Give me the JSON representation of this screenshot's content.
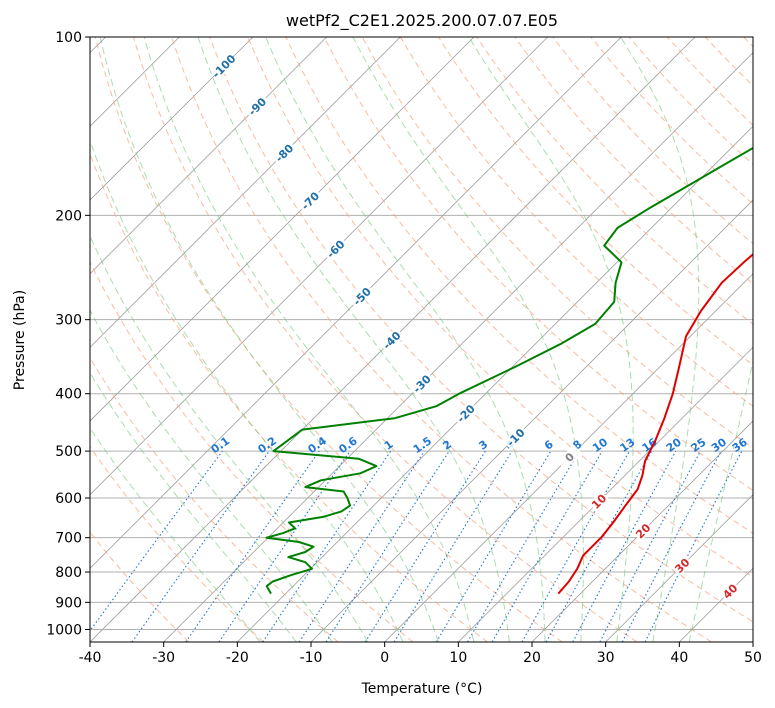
{
  "chart_data": {
    "type": "line",
    "title": "wetPf2_C2E1.2025.200.07.07.E05",
    "xlabel": "Temperature (°C)",
    "ylabel": "Pressure (hPa)",
    "xlim": [
      -40,
      50
    ],
    "ylim": [
      1050,
      100
    ],
    "y_scale": "log",
    "x_ticks": [
      -40,
      -30,
      -20,
      -10,
      0,
      10,
      20,
      30,
      40,
      50
    ],
    "y_ticks": [
      1000,
      900,
      800,
      700,
      600,
      500,
      400,
      300,
      200,
      100
    ],
    "grid": true,
    "skew": "isotherms slanted to upper right",
    "colors": {
      "temperature": "#e00000",
      "dewpoint": "#008000",
      "isotherm": "#9e9e9e",
      "dry_adiabat": "#f4a582",
      "moist_adiabat": "#74c476",
      "mixing_ratio": "#1f77d4",
      "isotherm_label": "#1f6fa8",
      "dry_label": "#d62728"
    },
    "series": [
      {
        "name": "",
        "color": "#e00000",
        "points": [
          {
            "p": 870,
            "t": 17.0
          },
          {
            "p": 830,
            "t": 16.8
          },
          {
            "p": 790,
            "t": 16.2
          },
          {
            "p": 750,
            "t": 15.2
          },
          {
            "p": 700,
            "t": 15.2
          },
          {
            "p": 660,
            "t": 14.8
          },
          {
            "p": 620,
            "t": 14.2
          },
          {
            "p": 580,
            "t": 13.6
          },
          {
            "p": 550,
            "t": 12.4
          },
          {
            "p": 520,
            "t": 10.8
          },
          {
            "p": 480,
            "t": 9.4
          },
          {
            "p": 440,
            "t": 7.6
          },
          {
            "p": 400,
            "t": 5.4
          },
          {
            "p": 360,
            "t": 2.6
          },
          {
            "p": 320,
            "t": -0.6
          },
          {
            "p": 290,
            "t": -2.0
          },
          {
            "p": 260,
            "t": -3.0
          },
          {
            "p": 240,
            "t": -2.8
          },
          {
            "p": 215,
            "t": -2.2
          },
          {
            "p": 200,
            "t": -1.2
          },
          {
            "p": 185,
            "t": 2.2
          },
          {
            "p": 170,
            "t": 6.0
          },
          {
            "p": 155,
            "t": 9.2
          },
          {
            "p": 140,
            "t": 11.2
          },
          {
            "p": 125,
            "t": 12.6
          },
          {
            "p": 115,
            "t": 14.2
          },
          {
            "p": 100,
            "t": 19.6
          }
        ]
      },
      {
        "name": "",
        "color": "#008000",
        "points": [
          {
            "p": 870,
            "t": -22.0
          },
          {
            "p": 845,
            "t": -23.6
          },
          {
            "p": 830,
            "t": -23.4
          },
          {
            "p": 810,
            "t": -21.8
          },
          {
            "p": 790,
            "t": -19.8
          },
          {
            "p": 770,
            "t": -21.6
          },
          {
            "p": 755,
            "t": -24.6
          },
          {
            "p": 740,
            "t": -23.0
          },
          {
            "p": 725,
            "t": -22.6
          },
          {
            "p": 712,
            "t": -25.2
          },
          {
            "p": 700,
            "t": -30.2
          },
          {
            "p": 688,
            "t": -28.6
          },
          {
            "p": 675,
            "t": -27.6
          },
          {
            "p": 660,
            "t": -29.2
          },
          {
            "p": 645,
            "t": -25.2
          },
          {
            "p": 632,
            "t": -23.6
          },
          {
            "p": 618,
            "t": -23.2
          },
          {
            "p": 600,
            "t": -24.6
          },
          {
            "p": 585,
            "t": -26.0
          },
          {
            "p": 575,
            "t": -31.8
          },
          {
            "p": 560,
            "t": -30.6
          },
          {
            "p": 545,
            "t": -26.2
          },
          {
            "p": 530,
            "t": -25.0
          },
          {
            "p": 515,
            "t": -28.4
          },
          {
            "p": 500,
            "t": -41.0
          },
          {
            "p": 460,
            "t": -40.0
          },
          {
            "p": 440,
            "t": -29.0
          },
          {
            "p": 420,
            "t": -25.0
          },
          {
            "p": 400,
            "t": -23.6
          },
          {
            "p": 360,
            "t": -19.6
          },
          {
            "p": 330,
            "t": -16.6
          },
          {
            "p": 305,
            "t": -14.6
          },
          {
            "p": 280,
            "t": -15.0
          },
          {
            "p": 260,
            "t": -17.4
          },
          {
            "p": 240,
            "t": -19.4
          },
          {
            "p": 225,
            "t": -24.0
          },
          {
            "p": 210,
            "t": -24.6
          },
          {
            "p": 195,
            "t": -23.0
          },
          {
            "p": 180,
            "t": -21.0
          },
          {
            "p": 165,
            "t": -18.8
          },
          {
            "p": 150,
            "t": -16.4
          },
          {
            "p": 135,
            "t": -14.8
          },
          {
            "p": 120,
            "t": -13.0
          },
          {
            "p": 110,
            "t": -10.6
          },
          {
            "p": 100,
            "t": -8.6
          }
        ]
      }
    ],
    "isotherm_labels": [
      {
        "text": "-100",
        "t": -100,
        "p": 112
      },
      {
        "text": "-90",
        "t": -90,
        "p": 131
      },
      {
        "text": "-80",
        "t": -80,
        "p": 157
      },
      {
        "text": "-70",
        "t": -70,
        "p": 189
      },
      {
        "text": "-60",
        "t": -60,
        "p": 228
      },
      {
        "text": "-50",
        "t": -50,
        "p": 274
      },
      {
        "text": "-40",
        "t": -40,
        "p": 325
      },
      {
        "text": "-30",
        "t": -30,
        "p": 385
      },
      {
        "text": "-20",
        "t": -20,
        "p": 432
      },
      {
        "text": "-10",
        "t": -10,
        "p": 474
      },
      {
        "text": "0",
        "t": 0,
        "p": 512
      }
    ],
    "dry_adiabat_labels": [
      {
        "text": "10",
        "t": 10,
        "p": 608
      },
      {
        "text": "20",
        "t": 20,
        "p": 682
      },
      {
        "text": "30",
        "t": 30,
        "p": 780
      },
      {
        "text": "40",
        "t": 40,
        "p": 862
      }
    ],
    "mixing_ratio_labels": [
      "0.1",
      "0.2",
      "0.4",
      "0.6",
      "1",
      "1.5",
      "2",
      "3",
      "4",
      "6",
      "8",
      "10",
      "13",
      "16",
      "20",
      "25",
      "30",
      "36"
    ]
  }
}
